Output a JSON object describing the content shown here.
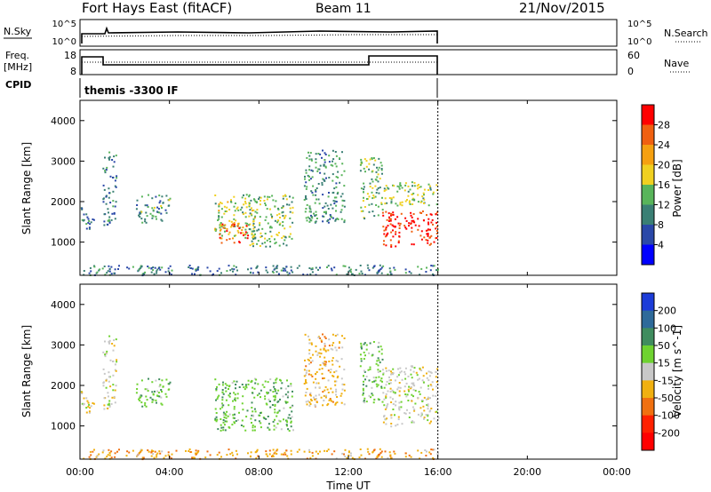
{
  "header": {
    "station": "Fort Hays East (fitACF)",
    "beam": "Beam 11",
    "date": "21/Nov/2015"
  },
  "noise_panel": {
    "ylabel": "N.Sky",
    "yticks_left": [
      "10^5",
      "10^0"
    ],
    "yticks_right": [
      "10^5",
      "10^0"
    ],
    "right_label": "N.Search"
  },
  "freq_panel": {
    "ylabel_top": "Freq.",
    "ylabel_unit": "[MHz]",
    "yticks_left": [
      "18",
      "8"
    ],
    "yticks_right": [
      "60",
      "0"
    ],
    "right_label": "Nave"
  },
  "cpid_panel": {
    "label": "CPID",
    "value": "themis -3300 IF"
  },
  "x_axis": {
    "label": "Time UT",
    "ticks": [
      "00:00",
      "04:00",
      "08:00",
      "12:00",
      "16:00",
      "20:00",
      "00:00"
    ]
  },
  "power_colorbar": {
    "label": "Power [dB]",
    "ticks": [
      "4",
      "8",
      "12",
      "16",
      "20",
      "24",
      "28"
    ],
    "colors": [
      "#0000ff",
      "#2a48a8",
      "#3a7f74",
      "#58b45a",
      "#f0d020",
      "#f5a010",
      "#f06010",
      "#ff0000"
    ]
  },
  "velocity_colorbar": {
    "label": "Velocity [m s^-1]",
    "ticks": [
      "200",
      "100",
      "50",
      "15",
      "-15",
      "-50",
      "-100",
      "-200"
    ],
    "colors": [
      "#1c3cd8",
      "#2e6a9a",
      "#3f8c5e",
      "#6ed230",
      "#c8c8c8",
      "#f0b010",
      "#f07010",
      "#ff2000",
      "#ff0000"
    ]
  },
  "chart_data": [
    {
      "type": "heatmap",
      "title": "",
      "xlabel": "Time UT",
      "ylabel": "Slant Range [km]",
      "xlim": [
        0,
        24
      ],
      "ylim": [
        180,
        4500
      ],
      "yticks": [
        1000,
        2000,
        3000,
        4000
      ],
      "value_label": "Power [dB]",
      "value_range": [
        0,
        32
      ],
      "data_extent_hours": [
        0,
        16
      ],
      "scatter_regions": [
        {
          "t": [
            0.0,
            0.6
          ],
          "range": [
            1300,
            1900
          ],
          "power": 10
        },
        {
          "t": [
            1.0,
            1.6
          ],
          "range": [
            1400,
            3300
          ],
          "power": 9
        },
        {
          "t": [
            2.5,
            4.0
          ],
          "range": [
            1500,
            2200
          ],
          "power": 12
        },
        {
          "t": [
            6.0,
            7.8
          ],
          "range": [
            1100,
            2200
          ],
          "power": 16
        },
        {
          "t": [
            6.2,
            7.5
          ],
          "range": [
            1000,
            1500
          ],
          "power": 26
        },
        {
          "t": [
            7.5,
            9.5
          ],
          "range": [
            900,
            2200
          ],
          "power": 15
        },
        {
          "t": [
            10.0,
            11.8
          ],
          "range": [
            1500,
            3300
          ],
          "power": 11
        },
        {
          "t": [
            12.5,
            13.5
          ],
          "range": [
            1600,
            3100
          ],
          "power": 14
        },
        {
          "t": [
            13.5,
            16.0
          ],
          "range": [
            900,
            1800
          ],
          "power": 29
        },
        {
          "t": [
            13.5,
            16.0
          ],
          "range": [
            1900,
            2500
          ],
          "power": 15
        },
        {
          "t": [
            0.0,
            16.0
          ],
          "range": [
            200,
            450
          ],
          "power": 9
        }
      ]
    },
    {
      "type": "heatmap",
      "title": "",
      "xlabel": "Time UT",
      "ylabel": "Slant Range [km]",
      "xlim": [
        0,
        24
      ],
      "ylim": [
        180,
        4500
      ],
      "yticks": [
        1000,
        2000,
        3000,
        4000
      ],
      "value_label": "Velocity [m s^-1]",
      "value_range": [
        -250,
        250
      ],
      "data_extent_hours": [
        0,
        16
      ],
      "scatter_regions": [
        {
          "t": [
            0.0,
            0.6
          ],
          "range": [
            1300,
            1900
          ],
          "velocity": 0
        },
        {
          "t": [
            1.0,
            1.6
          ],
          "range": [
            1400,
            3300
          ],
          "velocity": 0
        },
        {
          "t": [
            2.5,
            4.0
          ],
          "range": [
            1500,
            2200
          ],
          "velocity": 40
        },
        {
          "t": [
            6.0,
            9.5
          ],
          "range": [
            900,
            2200
          ],
          "velocity": 40
        },
        {
          "t": [
            10.0,
            11.8
          ],
          "range": [
            1500,
            3300
          ],
          "velocity": -30
        },
        {
          "t": [
            12.5,
            13.5
          ],
          "range": [
            1600,
            3100
          ],
          "velocity": 40
        },
        {
          "t": [
            13.5,
            16.0
          ],
          "range": [
            1000,
            2500
          ],
          "velocity": 0
        },
        {
          "t": [
            0.0,
            16.0
          ],
          "range": [
            200,
            450
          ],
          "velocity": -40
        }
      ]
    }
  ]
}
